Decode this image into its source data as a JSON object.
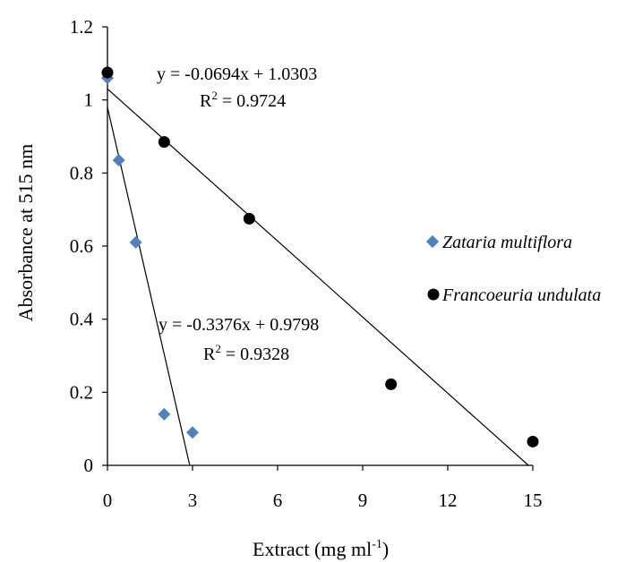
{
  "chart_data": {
    "type": "scatter",
    "title": "",
    "xlabel": "Extract (mg ml",
    "xlabel_sup": "-1",
    "xlabel_close": ")",
    "ylabel": "Absorbance at 515 nm",
    "xlim": [
      0,
      15
    ],
    "ylim": [
      0,
      1.2
    ],
    "x_ticks": [
      "0",
      "3",
      "6",
      "9",
      "12",
      "15"
    ],
    "y_ticks": [
      "0",
      "0.2",
      "0.4",
      "0.6",
      "0.8",
      "1",
      "1.2"
    ],
    "grid": false,
    "legend_position": "right",
    "series": [
      {
        "name": "Zataria multiflora",
        "marker": "diamond",
        "color": "#4f81bd",
        "points": [
          [
            0,
            1.06
          ],
          [
            0.4,
            0.835
          ],
          [
            1,
            0.61
          ],
          [
            2,
            0.14
          ],
          [
            3,
            0.09
          ]
        ],
        "trendline": {
          "slope": -0.3376,
          "intercept": 0.9798,
          "equation": "y = -0.3376x + 0.9798",
          "r2_label": "R",
          "r2_sup": "2",
          "r2_value": " = 0.9328"
        }
      },
      {
        "name": "Francoeuria undulata",
        "marker": "circle",
        "color": "#000000",
        "points": [
          [
            0,
            1.075
          ],
          [
            2,
            0.885
          ],
          [
            5,
            0.675
          ],
          [
            10,
            0.222
          ],
          [
            15,
            0.065
          ]
        ],
        "trendline": {
          "slope": -0.0694,
          "intercept": 1.0303,
          "equation": "y = -0.0694x + 1.0303",
          "r2_label": "R",
          "r2_sup": "2",
          "r2_value": " = 0.9724"
        }
      }
    ]
  }
}
